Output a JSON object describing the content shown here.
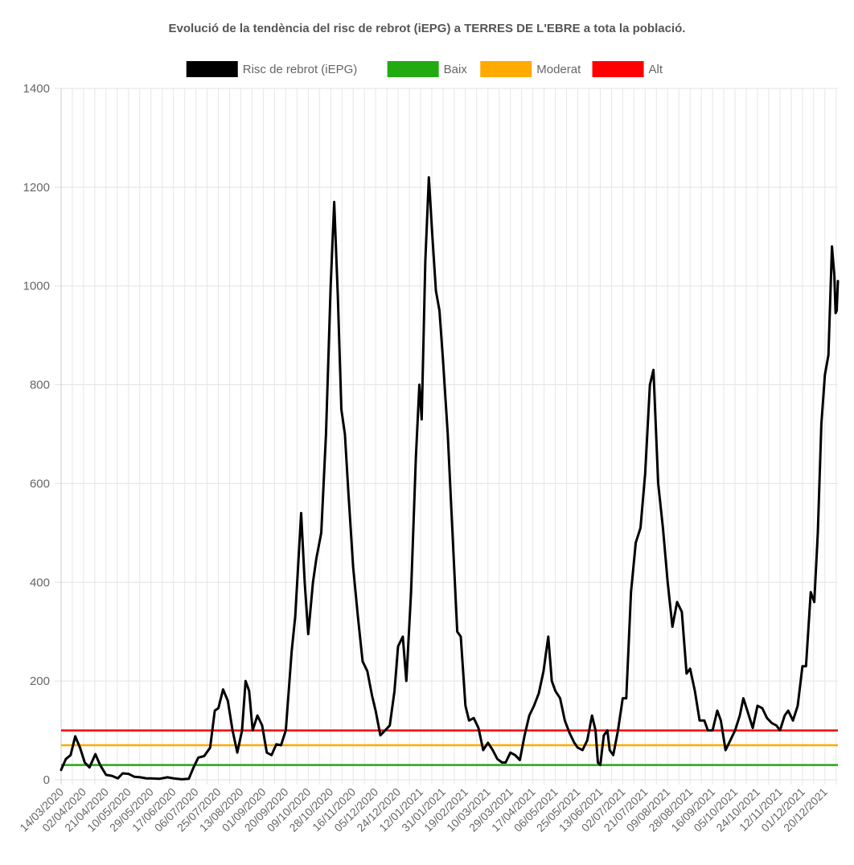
{
  "chart_data": {
    "type": "line",
    "title": "Evolució de la tendència del risc de rebrot (iEPG) a TERRES DE L'EBRE a tota la població.",
    "xlabel": "",
    "ylabel": "",
    "ylim": [
      0,
      1400
    ],
    "yticks": [
      0,
      200,
      400,
      600,
      800,
      1000,
      1200,
      1400
    ],
    "x_start": "14/03/2020",
    "x_end": "31/12/2021",
    "x_ticks": [
      "14/03/2020",
      "02/04/2020",
      "21/04/2020",
      "10/05/2020",
      "29/05/2020",
      "17/06/2020",
      "06/07/2020",
      "25/07/2020",
      "13/08/2020",
      "01/09/2020",
      "20/09/2020",
      "09/10/2020",
      "28/10/2020",
      "16/11/2020",
      "05/12/2020",
      "24/12/2020",
      "12/01/2021",
      "31/01/2021",
      "19/02/2021",
      "10/03/2021",
      "29/03/2021",
      "17/04/2021",
      "06/05/2021",
      "25/05/2021",
      "13/06/2021",
      "02/07/2021",
      "21/07/2021",
      "09/08/2021",
      "28/08/2021",
      "16/09/2021",
      "05/10/2021",
      "24/10/2021",
      "12/11/2021",
      "01/12/2021",
      "20/12/2021"
    ],
    "grid": true,
    "legend_position": "top",
    "series": [
      {
        "name": "Risc de rebrot (iEPG)",
        "color": "#000000",
        "points": [
          [
            "14/03/2020",
            20
          ],
          [
            "18/03/2020",
            42
          ],
          [
            "22/03/2020",
            50
          ],
          [
            "26/03/2020",
            88
          ],
          [
            "30/03/2020",
            65
          ],
          [
            "03/04/2020",
            35
          ],
          [
            "07/04/2020",
            25
          ],
          [
            "12/04/2020",
            52
          ],
          [
            "16/04/2020",
            30
          ],
          [
            "21/04/2020",
            10
          ],
          [
            "26/04/2020",
            8
          ],
          [
            "01/05/2020",
            3
          ],
          [
            "05/05/2020",
            13
          ],
          [
            "10/05/2020",
            12
          ],
          [
            "15/05/2020",
            6
          ],
          [
            "20/05/2020",
            5
          ],
          [
            "25/05/2020",
            3
          ],
          [
            "29/05/2020",
            3
          ],
          [
            "05/06/2020",
            2
          ],
          [
            "12/06/2020",
            5
          ],
          [
            "17/06/2020",
            3
          ],
          [
            "24/06/2020",
            1
          ],
          [
            "30/06/2020",
            2
          ],
          [
            "04/07/2020",
            25
          ],
          [
            "08/07/2020",
            45
          ],
          [
            "13/07/2020",
            48
          ],
          [
            "18/07/2020",
            65
          ],
          [
            "22/07/2020",
            140
          ],
          [
            "25/07/2020",
            145
          ],
          [
            "29/07/2020",
            183
          ],
          [
            "02/08/2020",
            160
          ],
          [
            "06/08/2020",
            100
          ],
          [
            "10/08/2020",
            55
          ],
          [
            "14/08/2020",
            100
          ],
          [
            "17/08/2020",
            200
          ],
          [
            "20/08/2020",
            180
          ],
          [
            "23/08/2020",
            100
          ],
          [
            "27/08/2020",
            130
          ],
          [
            "31/08/2020",
            110
          ],
          [
            "04/09/2020",
            55
          ],
          [
            "08/09/2020",
            50
          ],
          [
            "12/09/2020",
            72
          ],
          [
            "16/09/2020",
            70
          ],
          [
            "20/09/2020",
            100
          ],
          [
            "25/09/2020",
            260
          ],
          [
            "28/09/2020",
            330
          ],
          [
            "03/10/2020",
            540
          ],
          [
            "06/10/2020",
            400
          ],
          [
            "09/10/2020",
            295
          ],
          [
            "13/10/2020",
            400
          ],
          [
            "16/10/2020",
            450
          ],
          [
            "20/10/2020",
            500
          ],
          [
            "24/10/2020",
            700
          ],
          [
            "28/10/2020",
            1000
          ],
          [
            "31/10/2020",
            1170
          ],
          [
            "03/11/2020",
            980
          ],
          [
            "06/11/2020",
            750
          ],
          [
            "09/11/2020",
            700
          ],
          [
            "12/11/2020",
            580
          ],
          [
            "16/11/2020",
            430
          ],
          [
            "20/11/2020",
            330
          ],
          [
            "24/11/2020",
            240
          ],
          [
            "28/11/2020",
            220
          ],
          [
            "02/12/2020",
            170
          ],
          [
            "05/12/2020",
            140
          ],
          [
            "09/12/2020",
            90
          ],
          [
            "13/12/2020",
            100
          ],
          [
            "17/12/2020",
            110
          ],
          [
            "21/12/2020",
            180
          ],
          [
            "24/12/2020",
            270
          ],
          [
            "28/12/2020",
            290
          ],
          [
            "31/12/2020",
            200
          ],
          [
            "04/01/2021",
            380
          ],
          [
            "08/01/2021",
            650
          ],
          [
            "11/01/2021",
            800
          ],
          [
            "13/01/2021",
            730
          ],
          [
            "16/01/2021",
            1050
          ],
          [
            "19/01/2021",
            1220
          ],
          [
            "22/01/2021",
            1100
          ],
          [
            "25/01/2021",
            990
          ],
          [
            "28/01/2021",
            950
          ],
          [
            "31/01/2021",
            850
          ],
          [
            "04/02/2021",
            700
          ],
          [
            "08/02/2021",
            500
          ],
          [
            "12/02/2021",
            300
          ],
          [
            "15/02/2021",
            290
          ],
          [
            "19/02/2021",
            150
          ],
          [
            "22/02/2021",
            120
          ],
          [
            "26/02/2021",
            125
          ],
          [
            "02/03/2021",
            105
          ],
          [
            "06/03/2021",
            60
          ],
          [
            "10/03/2021",
            75
          ],
          [
            "14/03/2021",
            60
          ],
          [
            "18/03/2021",
            42
          ],
          [
            "22/03/2021",
            35
          ],
          [
            "25/03/2021",
            35
          ],
          [
            "29/03/2021",
            55
          ],
          [
            "02/04/2021",
            50
          ],
          [
            "06/04/2021",
            40
          ],
          [
            "10/04/2021",
            90
          ],
          [
            "14/04/2021",
            130
          ],
          [
            "18/04/2021",
            150
          ],
          [
            "22/04/2021",
            175
          ],
          [
            "26/04/2021",
            220
          ],
          [
            "30/04/2021",
            290
          ],
          [
            "03/05/2021",
            200
          ],
          [
            "06/05/2021",
            180
          ],
          [
            "10/05/2021",
            165
          ],
          [
            "14/05/2021",
            120
          ],
          [
            "18/05/2021",
            95
          ],
          [
            "22/05/2021",
            75
          ],
          [
            "25/05/2021",
            65
          ],
          [
            "29/05/2021",
            60
          ],
          [
            "02/06/2021",
            80
          ],
          [
            "06/06/2021",
            130
          ],
          [
            "09/06/2021",
            100
          ],
          [
            "11/06/2021",
            35
          ],
          [
            "13/06/2021",
            30
          ],
          [
            "16/06/2021",
            90
          ],
          [
            "19/06/2021",
            100
          ],
          [
            "21/06/2021",
            60
          ],
          [
            "24/06/2021",
            50
          ],
          [
            "28/06/2021",
            100
          ],
          [
            "02/07/2021",
            165
          ],
          [
            "05/07/2021",
            165
          ],
          [
            "09/07/2021",
            380
          ],
          [
            "13/07/2021",
            480
          ],
          [
            "17/07/2021",
            510
          ],
          [
            "21/07/2021",
            620
          ],
          [
            "25/07/2021",
            800
          ],
          [
            "28/07/2021",
            830
          ],
          [
            "01/08/2021",
            600
          ],
          [
            "05/08/2021",
            510
          ],
          [
            "09/08/2021",
            400
          ],
          [
            "13/08/2021",
            310
          ],
          [
            "17/08/2021",
            360
          ],
          [
            "21/08/2021",
            340
          ],
          [
            "25/08/2021",
            215
          ],
          [
            "28/08/2021",
            225
          ],
          [
            "01/09/2021",
            180
          ],
          [
            "05/09/2021",
            120
          ],
          [
            "09/09/2021",
            120
          ],
          [
            "12/09/2021",
            100
          ],
          [
            "16/09/2021",
            100
          ],
          [
            "20/09/2021",
            140
          ],
          [
            "23/09/2021",
            120
          ],
          [
            "27/09/2021",
            60
          ],
          [
            "01/10/2021",
            80
          ],
          [
            "05/10/2021",
            100
          ],
          [
            "09/10/2021",
            130
          ],
          [
            "12/10/2021",
            165
          ],
          [
            "16/10/2021",
            135
          ],
          [
            "20/10/2021",
            105
          ],
          [
            "24/10/2021",
            150
          ],
          [
            "28/10/2021",
            145
          ],
          [
            "01/11/2021",
            125
          ],
          [
            "05/11/2021",
            115
          ],
          [
            "09/11/2021",
            110
          ],
          [
            "12/11/2021",
            100
          ],
          [
            "16/11/2021",
            130
          ],
          [
            "19/11/2021",
            140
          ],
          [
            "23/11/2021",
            120
          ],
          [
            "27/11/2021",
            150
          ],
          [
            "01/12/2021",
            230
          ],
          [
            "04/12/2021",
            230
          ],
          [
            "08/12/2021",
            380
          ],
          [
            "11/12/2021",
            360
          ],
          [
            "14/12/2021",
            500
          ],
          [
            "17/12/2021",
            720
          ],
          [
            "20/12/2021",
            820
          ],
          [
            "23/12/2021",
            860
          ],
          [
            "26/12/2021",
            1080
          ],
          [
            "28/12/2021",
            1020
          ],
          [
            "29/12/2021",
            945
          ],
          [
            "30/12/2021",
            950
          ],
          [
            "31/12/2021",
            1010
          ]
        ]
      },
      {
        "name": "Baix",
        "color": "#22aa11",
        "value": 30
      },
      {
        "name": "Moderat",
        "color": "#ffaa00",
        "value": 70
      },
      {
        "name": "Alt",
        "color": "#ff0000",
        "value": 100
      }
    ]
  }
}
